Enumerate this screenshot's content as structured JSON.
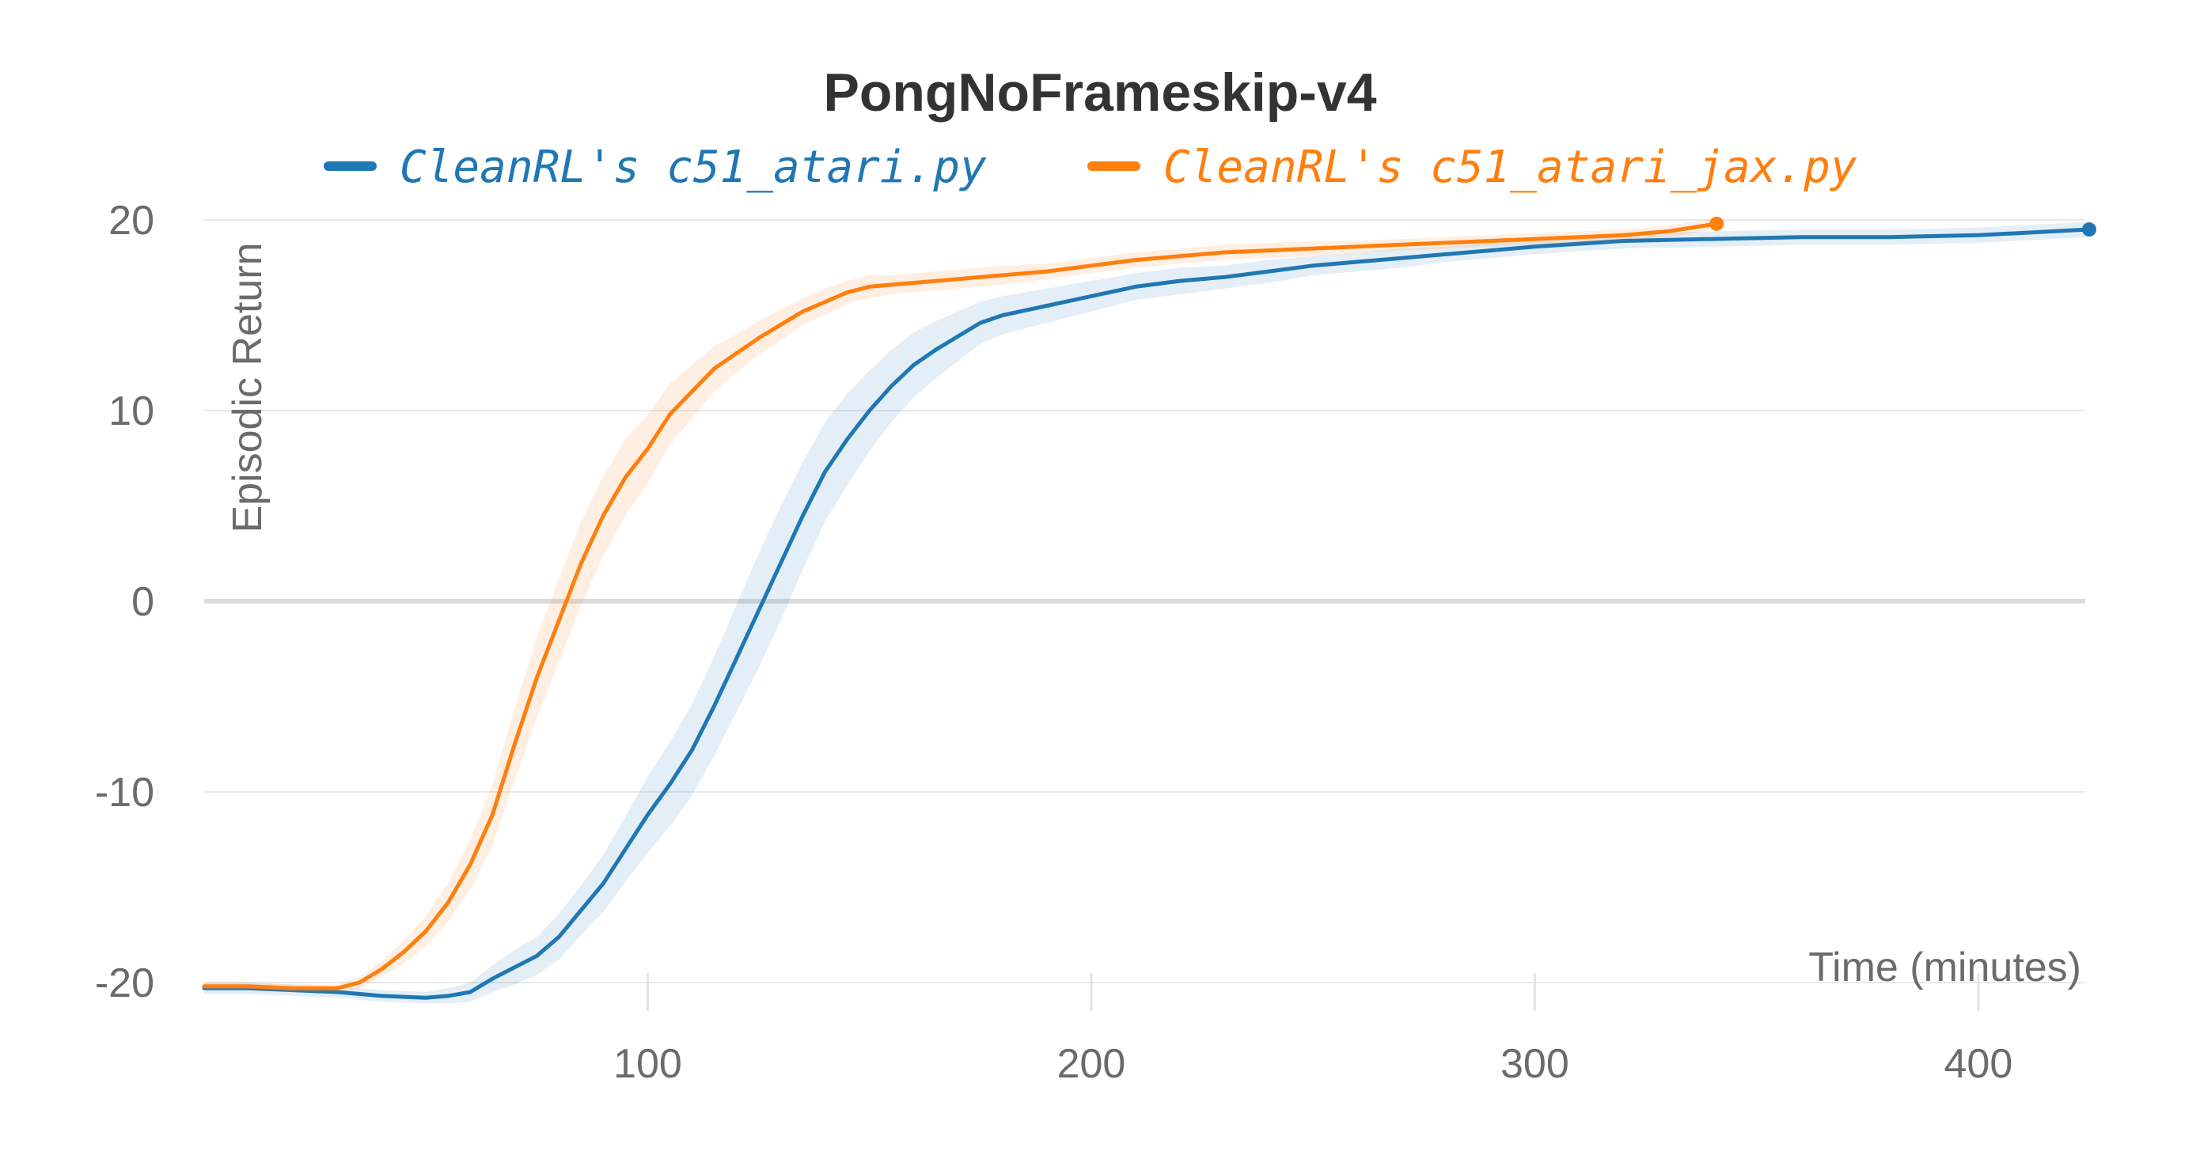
{
  "chart_data": {
    "type": "line",
    "title": "PongNoFrameskip-v4",
    "xlabel": "Time (minutes)",
    "ylabel": "Episodic Return",
    "xlim": [
      0,
      425
    ],
    "ylim": [
      -20,
      20
    ],
    "x_ticks": [
      100,
      200,
      300,
      400
    ],
    "y_ticks": [
      20,
      10,
      0,
      -10,
      -20
    ],
    "grid": true,
    "legend": "top",
    "series": [
      {
        "name": "CleanRL's c51_atari.py",
        "color": "#1f77b4",
        "x": [
          0,
          10,
          20,
          30,
          40,
          50,
          55,
          60,
          65,
          70,
          75,
          80,
          85,
          90,
          95,
          100,
          105,
          110,
          115,
          120,
          125,
          130,
          135,
          140,
          145,
          150,
          155,
          160,
          165,
          170,
          175,
          180,
          190,
          200,
          210,
          220,
          230,
          240,
          250,
          260,
          270,
          280,
          290,
          300,
          320,
          340,
          360,
          380,
          400,
          425
        ],
        "y": [
          -20.3,
          -20.3,
          -20.4,
          -20.5,
          -20.7,
          -20.8,
          -20.7,
          -20.5,
          -19.8,
          -19.2,
          -18.6,
          -17.6,
          -16.2,
          -14.8,
          -13.0,
          -11.2,
          -9.6,
          -7.8,
          -5.5,
          -3.0,
          -0.5,
          2.0,
          4.5,
          6.8,
          8.5,
          10.0,
          11.3,
          12.4,
          13.2,
          13.9,
          14.6,
          15.0,
          15.5,
          16.0,
          16.5,
          16.8,
          17.0,
          17.3,
          17.6,
          17.8,
          18.0,
          18.2,
          18.4,
          18.6,
          18.9,
          19.0,
          19.1,
          19.1,
          19.2,
          19.5
        ],
        "band_width": [
          0.3,
          0.3,
          0.3,
          0.3,
          0.3,
          0.3,
          0.4,
          0.5,
          0.7,
          0.9,
          1.0,
          1.2,
          1.3,
          1.5,
          1.7,
          2.0,
          2.2,
          2.4,
          2.6,
          2.8,
          3.0,
          3.0,
          2.8,
          2.6,
          2.4,
          2.1,
          1.9,
          1.7,
          1.5,
          1.3,
          1.1,
          1.0,
          0.9,
          0.8,
          0.7,
          0.7,
          0.6,
          0.6,
          0.5,
          0.5,
          0.5,
          0.4,
          0.4,
          0.4,
          0.4,
          0.4,
          0.4,
          0.4,
          0.4,
          0.4
        ]
      },
      {
        "name": "CleanRL's c51_atari_jax.py",
        "color": "#ff7f0e",
        "x": [
          0,
          10,
          20,
          30,
          35,
          40,
          45,
          50,
          55,
          60,
          65,
          70,
          75,
          80,
          85,
          90,
          95,
          100,
          105,
          110,
          115,
          120,
          125,
          130,
          135,
          140,
          145,
          150,
          155,
          160,
          170,
          180,
          190,
          200,
          210,
          220,
          230,
          240,
          250,
          260,
          270,
          280,
          290,
          300,
          310,
          320,
          330,
          341
        ],
        "y": [
          -20.2,
          -20.2,
          -20.3,
          -20.3,
          -20.0,
          -19.3,
          -18.4,
          -17.3,
          -15.8,
          -13.8,
          -11.2,
          -7.5,
          -4.0,
          -1.0,
          2.0,
          4.5,
          6.5,
          8.0,
          9.8,
          11.0,
          12.2,
          13.0,
          13.8,
          14.5,
          15.2,
          15.7,
          16.2,
          16.5,
          16.6,
          16.7,
          16.9,
          17.1,
          17.3,
          17.6,
          17.9,
          18.1,
          18.3,
          18.4,
          18.5,
          18.6,
          18.7,
          18.8,
          18.9,
          19.0,
          19.1,
          19.2,
          19.4,
          19.8
        ],
        "band_width": [
          0.2,
          0.2,
          0.2,
          0.2,
          0.3,
          0.4,
          0.6,
          0.8,
          1.0,
          1.3,
          1.6,
          1.9,
          2.1,
          2.2,
          2.2,
          2.1,
          2.0,
          1.8,
          1.6,
          1.4,
          1.2,
          1.0,
          0.9,
          0.8,
          0.7,
          0.7,
          0.6,
          0.6,
          0.5,
          0.5,
          0.5,
          0.5,
          0.4,
          0.4,
          0.4,
          0.4,
          0.4,
          0.4,
          0.4,
          0.3,
          0.3,
          0.3,
          0.3,
          0.3,
          0.3,
          0.3,
          0.3,
          0.3
        ]
      }
    ]
  }
}
